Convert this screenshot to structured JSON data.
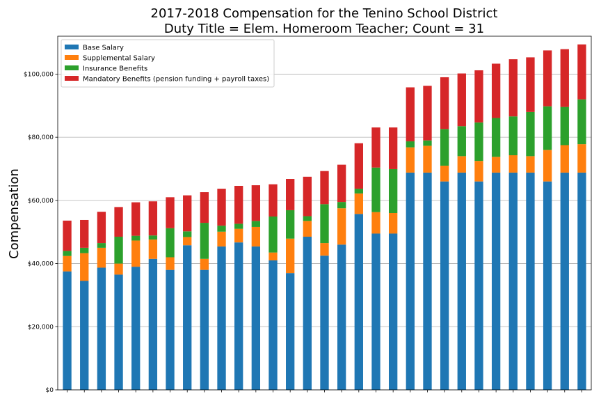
{
  "chart_data": {
    "type": "bar",
    "stacked": true,
    "title": [
      "2017-2018 Compensation for the Tenino School District",
      "Duty Title = Elem. Homeroom Teacher; Count = 31"
    ],
    "xlabel": "",
    "ylabel": "Compensation",
    "ylim": [
      0,
      112000
    ],
    "yticks": [
      0,
      20000,
      40000,
      60000,
      80000,
      100000
    ],
    "ytick_labels": [
      "$0",
      "$20,000",
      "$40,000",
      "$60,000",
      "$80,000",
      "$100,000"
    ],
    "grid": "horizontal",
    "legend_position": "top-left",
    "bar_count": 31,
    "series": [
      {
        "name": "Base Salary",
        "color": "#1f77b4",
        "values": [
          37500,
          34500,
          38700,
          36500,
          39000,
          41500,
          38000,
          45800,
          38000,
          45400,
          46700,
          45400,
          41000,
          37000,
          48500,
          42500,
          46000,
          55700,
          49500,
          49500,
          68800,
          68800,
          66000,
          68800,
          66000,
          68800,
          68800,
          68800,
          66000,
          68800,
          68800
        ]
      },
      {
        "name": "Supplemental Salary",
        "color": "#ff7f0e",
        "values": [
          4900,
          8800,
          6300,
          3500,
          8300,
          6100,
          4000,
          2600,
          3500,
          4700,
          4300,
          6200,
          2500,
          10900,
          5000,
          4000,
          11500,
          6500,
          6800,
          6500,
          8000,
          8500,
          5000,
          5200,
          6500,
          5000,
          5500,
          5200,
          10000,
          8700,
          9000
        ]
      },
      {
        "name": "Insurance Benefits",
        "color": "#2ca02c",
        "values": [
          1600,
          1700,
          1500,
          8500,
          1500,
          1300,
          9200,
          1800,
          11400,
          1900,
          1600,
          1900,
          11400,
          9000,
          1500,
          12300,
          2000,
          1500,
          14100,
          13900,
          1900,
          1700,
          11600,
          9500,
          12200,
          12300,
          12300,
          14000,
          13800,
          12100,
          14200
        ]
      },
      {
        "name": "Mandatory Benefits (pension funding + payroll taxes)",
        "color": "#d62728",
        "values": [
          9600,
          8800,
          9900,
          9400,
          10600,
          10800,
          9800,
          11400,
          9700,
          11700,
          12000,
          11300,
          10200,
          9900,
          12500,
          10500,
          11800,
          14400,
          12700,
          13200,
          17100,
          17300,
          16400,
          16700,
          16500,
          17200,
          18100,
          17300,
          17700,
          18300,
          17400
        ]
      }
    ]
  }
}
